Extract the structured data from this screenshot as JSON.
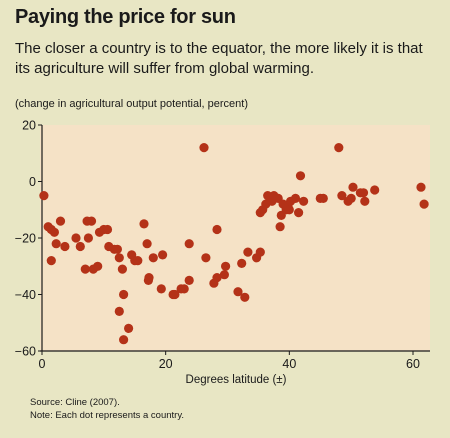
{
  "title": "Paying the price for sun",
  "subtitle": "The closer a country is to the equator, the more likely it is that its agriculture will suffer from global warming.",
  "source": "Source: Cline (2007).",
  "note": "Note: Each dot represents a country.",
  "colors": {
    "background": "#e8e6c4",
    "plot": "#f5e2c6",
    "dot": "#b43218"
  },
  "chart_data": {
    "type": "scatter",
    "ylabel": "(change in agricultural output potential, percent)",
    "xlabel": "Degrees latitude (±)",
    "xlim": [
      0,
      63
    ],
    "ylim": [
      -60,
      20
    ],
    "xticks": [
      0,
      20,
      40,
      60
    ],
    "yticks": [
      20,
      0,
      -20,
      -40,
      -60
    ],
    "grid": false,
    "points": [
      [
        0.3,
        -5
      ],
      [
        1,
        -16
      ],
      [
        1.5,
        -17
      ],
      [
        1.5,
        -28
      ],
      [
        2,
        -18
      ],
      [
        2.3,
        -22
      ],
      [
        3,
        -14
      ],
      [
        3.7,
        -23
      ],
      [
        5.5,
        -20
      ],
      [
        6.2,
        -23
      ],
      [
        7,
        -31
      ],
      [
        7.3,
        -14
      ],
      [
        7.5,
        -20
      ],
      [
        8,
        -14
      ],
      [
        8.3,
        -31
      ],
      [
        9,
        -30
      ],
      [
        9.3,
        -18
      ],
      [
        10,
        -17
      ],
      [
        10.6,
        -17
      ],
      [
        10.8,
        -23
      ],
      [
        11.7,
        -24
      ],
      [
        12.2,
        -24
      ],
      [
        12.5,
        -27
      ],
      [
        12.5,
        -46
      ],
      [
        13,
        -31
      ],
      [
        13.2,
        -40
      ],
      [
        13.2,
        -56
      ],
      [
        14,
        -52
      ],
      [
        14.5,
        -26
      ],
      [
        15,
        -28
      ],
      [
        15.5,
        -28
      ],
      [
        16.5,
        -15
      ],
      [
        17,
        -22
      ],
      [
        17.2,
        -35
      ],
      [
        17.3,
        -34
      ],
      [
        18,
        -27
      ],
      [
        19.3,
        -38
      ],
      [
        19.5,
        -26
      ],
      [
        21.2,
        -40
      ],
      [
        21.5,
        -40
      ],
      [
        22.5,
        -38
      ],
      [
        23,
        -38
      ],
      [
        23.8,
        -22
      ],
      [
        23.8,
        -35
      ],
      [
        26.2,
        12
      ],
      [
        26.5,
        -27
      ],
      [
        27.8,
        -36
      ],
      [
        28.3,
        -17
      ],
      [
        28.3,
        -34
      ],
      [
        29.5,
        -33
      ],
      [
        29.7,
        -30
      ],
      [
        31.7,
        -39
      ],
      [
        32.3,
        -29
      ],
      [
        32.8,
        -41
      ],
      [
        33.3,
        -25
      ],
      [
        34.7,
        -27
      ],
      [
        35.3,
        -11
      ],
      [
        35.3,
        -25
      ],
      [
        35.7,
        -10
      ],
      [
        36.2,
        -8
      ],
      [
        36.5,
        -5
      ],
      [
        37.2,
        -7
      ],
      [
        37.5,
        -5
      ],
      [
        38.2,
        -6
      ],
      [
        38.5,
        -16
      ],
      [
        38.7,
        -12
      ],
      [
        39,
        -8
      ],
      [
        39.5,
        -10
      ],
      [
        39.8,
        -9
      ],
      [
        40,
        -10
      ],
      [
        40.2,
        -7
      ],
      [
        41,
        -6
      ],
      [
        41.5,
        -11
      ],
      [
        41.8,
        2
      ],
      [
        42.3,
        -7
      ],
      [
        45,
        -6
      ],
      [
        45.5,
        -6
      ],
      [
        48,
        12
      ],
      [
        48.5,
        -5
      ],
      [
        49.5,
        -7
      ],
      [
        50,
        -6
      ],
      [
        50.3,
        -2
      ],
      [
        51.5,
        -4
      ],
      [
        52,
        -4
      ],
      [
        52.2,
        -7
      ],
      [
        53.8,
        -3
      ],
      [
        61.3,
        -2
      ],
      [
        61.8,
        -8
      ]
    ]
  }
}
